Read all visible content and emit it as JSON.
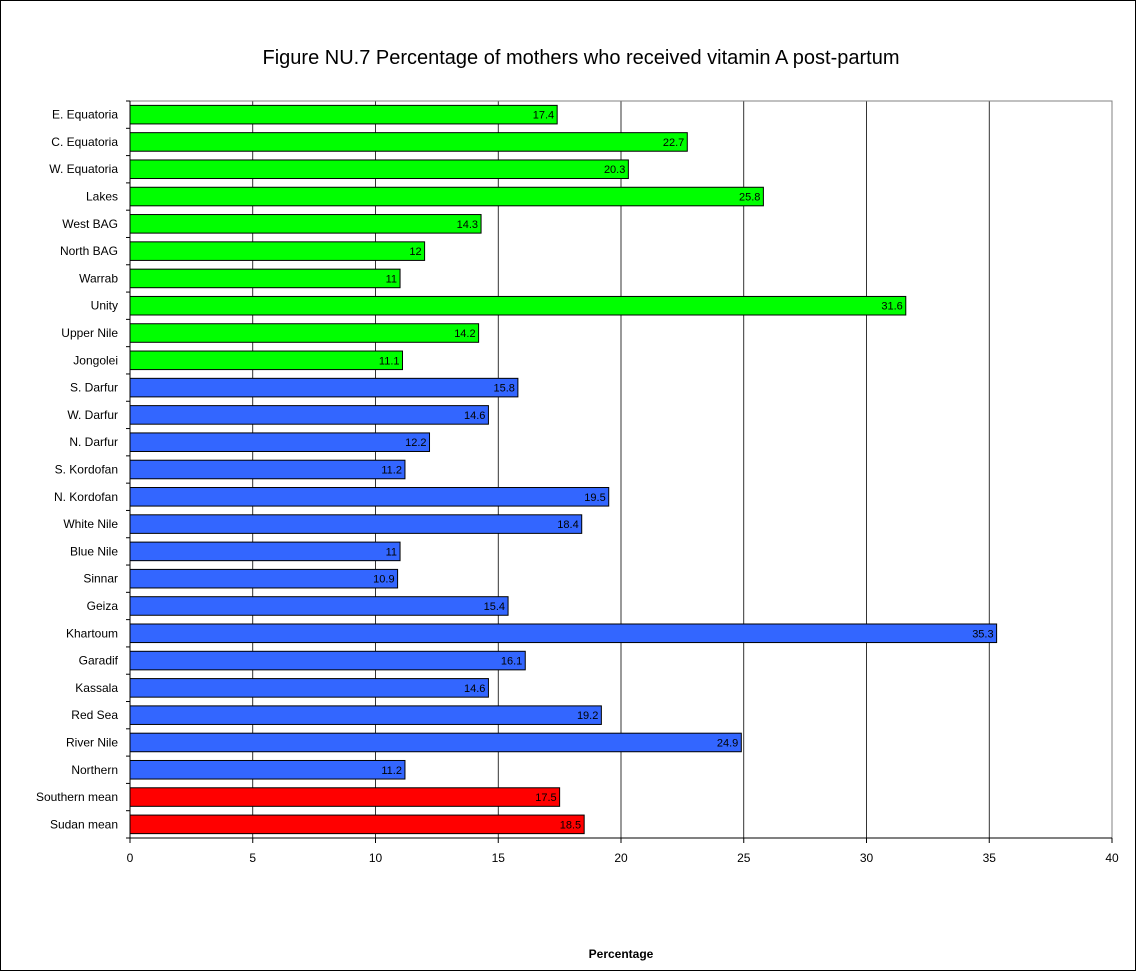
{
  "chart_data": {
    "type": "bar",
    "orientation": "horizontal",
    "title": "Figure NU.7 Percentage of mothers who received vitamin A post-partum",
    "xlabel": "Percentage",
    "ylabel": "",
    "xlim": [
      0,
      40
    ],
    "x_ticks": [
      0,
      5,
      10,
      15,
      20,
      25,
      30,
      35,
      40
    ],
    "grid": "vertical",
    "legend": "none",
    "categories": [
      "E. Equatoria",
      "C. Equatoria",
      "W. Equatoria",
      "Lakes",
      "West BAG",
      "North BAG",
      "Warrab",
      "Unity",
      "Upper Nile",
      "Jongolei",
      "S. Darfur",
      "W. Darfur",
      "N. Darfur",
      "S. Kordofan",
      "N. Kordofan",
      "White Nile",
      "Blue Nile",
      "Sinnar",
      "Geiza",
      "Khartoum",
      "Garadif",
      "Kassala",
      "Red Sea",
      "River Nile",
      "Northern",
      "Southern mean",
      "Sudan mean"
    ],
    "values": [
      17.4,
      22.7,
      20.3,
      25.8,
      14.3,
      12,
      11,
      31.6,
      14.2,
      11.1,
      15.8,
      14.6,
      12.2,
      11.2,
      19.5,
      18.4,
      11,
      10.9,
      15.4,
      35.3,
      16.1,
      14.6,
      19.2,
      24.9,
      11.2,
      17.5,
      18.5
    ],
    "value_labels": [
      "17.4",
      "22.7",
      "20.3",
      "25.8",
      "14.3",
      "12",
      "11",
      "31.6",
      "14.2",
      "11.1",
      "15.8",
      "14.6",
      "12.2",
      "11.2",
      "19.5",
      "18.4",
      "11",
      "10.9",
      "15.4",
      "35.3",
      "16.1",
      "14.6",
      "19.2",
      "24.9",
      "11.2",
      "17.5",
      "18.5"
    ],
    "bar_colors": [
      "#00ff00",
      "#00ff00",
      "#00ff00",
      "#00ff00",
      "#00ff00",
      "#00ff00",
      "#00ff00",
      "#00ff00",
      "#00ff00",
      "#00ff00",
      "#3366ff",
      "#3366ff",
      "#3366ff",
      "#3366ff",
      "#3366ff",
      "#3366ff",
      "#3366ff",
      "#3366ff",
      "#3366ff",
      "#3366ff",
      "#3366ff",
      "#3366ff",
      "#3366ff",
      "#3366ff",
      "#3366ff",
      "#ff0000",
      "#ff0000"
    ]
  }
}
